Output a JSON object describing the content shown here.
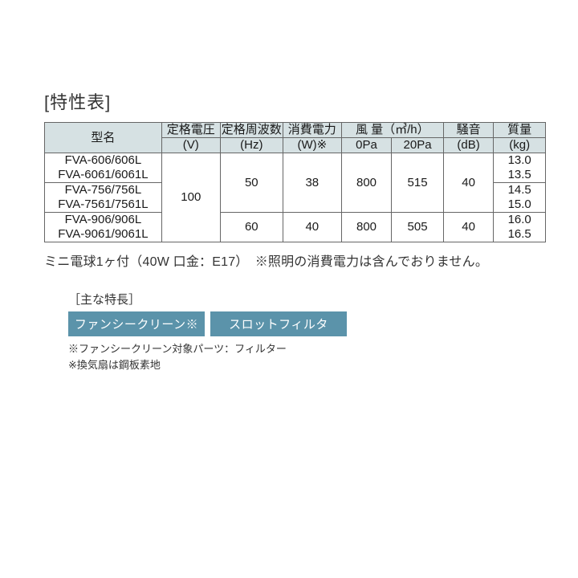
{
  "title": "[特性表]",
  "header": {
    "model_top": "型名",
    "volt_top": "定格電圧",
    "volt_bot": "(V)",
    "freq_top": "定格周波数",
    "freq_bot": "(Hz)",
    "power_top": "消費電力",
    "power_bot": "(W)※",
    "air_top": "風 量（㎥/h）",
    "air_col1": "0Pa",
    "air_col2": "20Pa",
    "noise_top": "騒音",
    "noise_bot": "(dB)",
    "weight_top": "質量",
    "weight_bot": "(kg)"
  },
  "rows": [
    {
      "model_l1": "FVA-606/606L",
      "model_l2": "FVA-6061/6061L",
      "freq": "50",
      "power": "38",
      "air1": "800",
      "air2": "515",
      "noise": "40",
      "weight_l1": "13.0",
      "weight_l2": "13.5"
    },
    {
      "model_l1": "FVA-756/756L",
      "model_l2": "FVA-7561/7561L",
      "weight_l1": "14.5",
      "weight_l2": "15.0"
    },
    {
      "model_l1": "FVA-906/906L",
      "model_l2": "FVA-9061/9061L",
      "freq": "60",
      "power": "40",
      "air1": "800",
      "air2": "505",
      "noise": "40",
      "weight_l1": "16.0",
      "weight_l2": "16.5"
    }
  ],
  "voltage": "100",
  "note": "ミニ電球1ヶ付（40W 口金：E17）　※照明の消費電力は含んでおりません。",
  "features_title": "［主な特長］",
  "tags": [
    "ファンシークリーン※",
    "スロットフィルタ"
  ],
  "subnote_l1": "※ファンシークリーン対象パーツ：フィルター",
  "subnote_l2": "※換気扇は鋼板素地",
  "colors": {
    "header_bg": "#d6e1e3",
    "border": "#666666",
    "tag_bg": "#5b93aa",
    "tag_fg": "#ffffff",
    "text": "#333333",
    "page_bg": "#ffffff"
  }
}
